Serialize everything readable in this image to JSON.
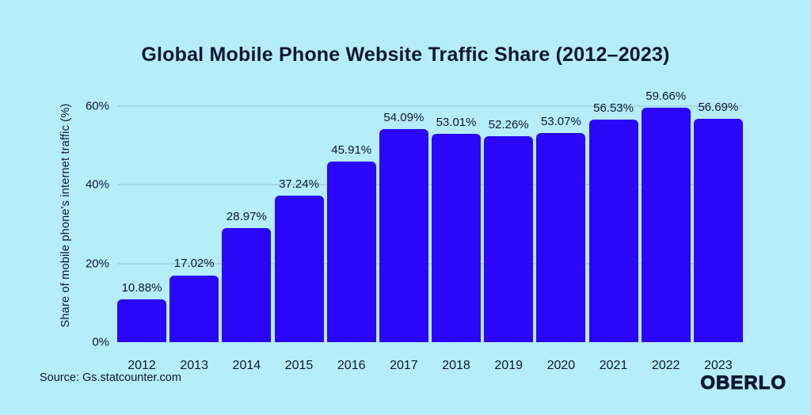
{
  "page": {
    "background": "#B5EDFA",
    "text_color": "#0F1830"
  },
  "chart_data": {
    "type": "bar",
    "title": "Global Mobile Phone Website Traffic Share (2012–2023)",
    "xlabel": "",
    "ylabel": "Share of mobile phone's internet traffic (%)",
    "categories": [
      "2012",
      "2013",
      "2014",
      "2015",
      "2016",
      "2017",
      "2018",
      "2019",
      "2020",
      "2021",
      "2022",
      "2023"
    ],
    "values": [
      10.88,
      17.02,
      28.97,
      37.24,
      45.91,
      54.09,
      53.01,
      52.26,
      53.07,
      56.53,
      59.66,
      56.69
    ],
    "value_labels": [
      "10.88%",
      "17.02%",
      "28.97%",
      "37.24%",
      "45.91%",
      "54.09%",
      "53.01%",
      "52.26%",
      "53.07%",
      "56.53%",
      "59.66%",
      "56.69%"
    ],
    "ylim": [
      0,
      60
    ],
    "yticks": [
      0,
      20,
      40,
      60
    ],
    "ytick_labels": [
      "0%",
      "20%",
      "40%",
      "60%"
    ],
    "grid": "horizontal",
    "legend": "none",
    "bar_color": "#2B06F9",
    "grid_color": "#A6D7E5"
  },
  "footer": {
    "source": "Source: Gs.statcounter.com",
    "brand": "OBERLO"
  }
}
